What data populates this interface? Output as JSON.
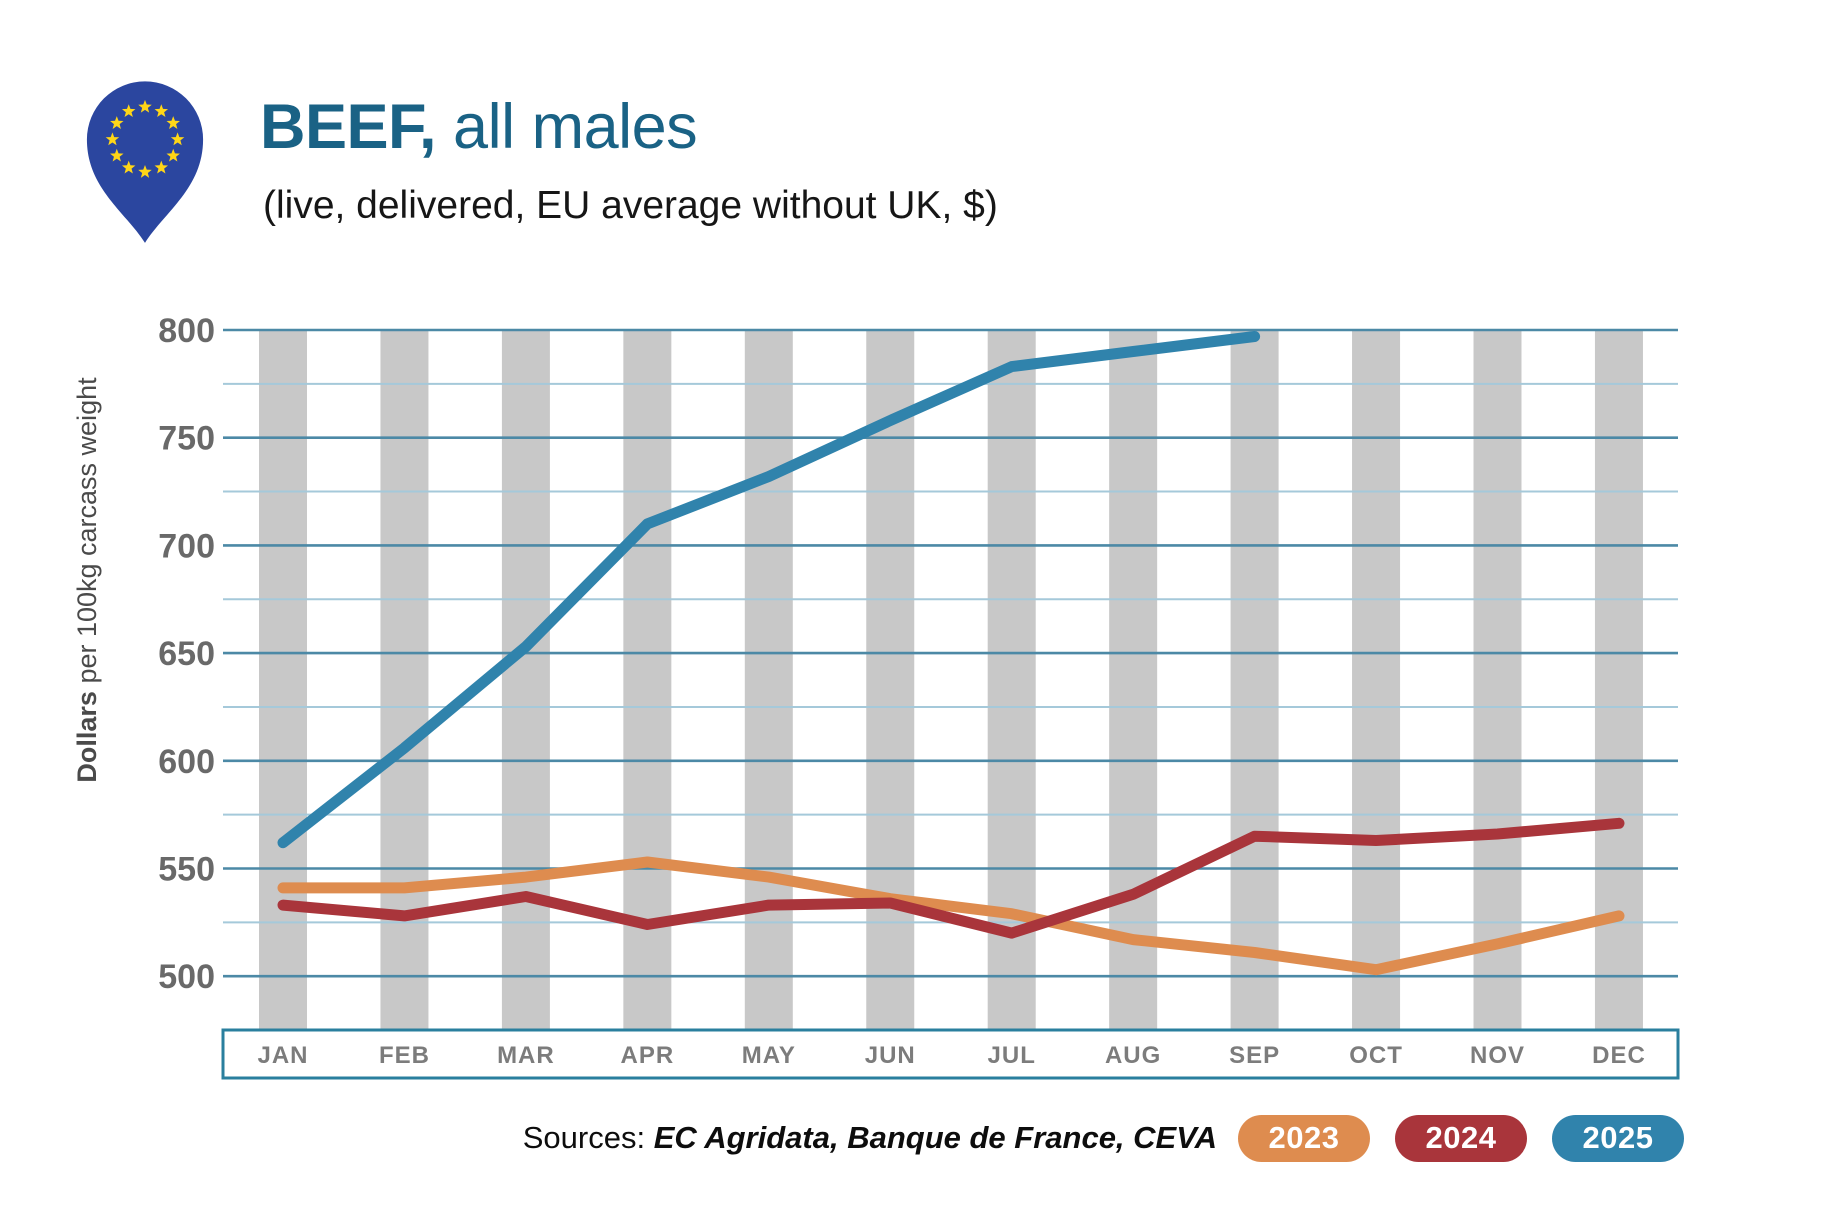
{
  "header": {
    "logo": "eu-location-pin",
    "title_bold": "BEEF,",
    "title_regular": " all males",
    "subtitle": "(live, delivered, EU average without UK, $)"
  },
  "footer": {
    "sources_label": "Sources:",
    "sources_value": "EC Agridata, Banque de France, CEVA"
  },
  "legend": {
    "position": "bottom-right",
    "items": [
      {
        "label": "2023",
        "color": "#DE8C4F"
      },
      {
        "label": "2024",
        "color": "#A9353B"
      },
      {
        "label": "2025",
        "color": "#3083AC"
      }
    ]
  },
  "colors": {
    "title": "#1A6285",
    "major_gridline": "#4C89A6",
    "minor_gridline": "#A5C9DA",
    "column_band": "#C8C8C8",
    "axis_box_border": "#2A7F9E",
    "month_label": "#7C7C7C",
    "y_tick_label": "#696969",
    "y_axis_title": "#4A4A4A",
    "pin_blue": "#2B469F",
    "star_yellow": "#FFD617"
  },
  "chart_data": {
    "type": "line",
    "title": "BEEF, all males",
    "subtitle": "(live, delivered, EU average without UK, $)",
    "xlabel": "",
    "ylabel_bold": "Dollars",
    "ylabel_rest": " per 100kg carcass weight",
    "ylim": [
      500,
      800
    ],
    "y_major_ticks": [
      500,
      550,
      600,
      650,
      700,
      750,
      800
    ],
    "y_minor_ticks": [
      525,
      575,
      625,
      675,
      725,
      775
    ],
    "grid": true,
    "legend_position": "bottom-right",
    "categories": [
      "JAN",
      "FEB",
      "MAR",
      "APR",
      "MAY",
      "JUN",
      "JUL",
      "AUG",
      "SEP",
      "OCT",
      "NOV",
      "DEC"
    ],
    "series": [
      {
        "name": "2023",
        "color": "#DE8C4F",
        "values": [
          541,
          541,
          546,
          553,
          546,
          536,
          529,
          517,
          511,
          503,
          515,
          528
        ]
      },
      {
        "name": "2024",
        "color": "#A9353B",
        "values": [
          533,
          528,
          537,
          524,
          533,
          534,
          520,
          538,
          565,
          563,
          566,
          571
        ]
      },
      {
        "name": "2025",
        "color": "#3083AC",
        "values": [
          562,
          606,
          653,
          710,
          732,
          758,
          783,
          790,
          797,
          null,
          null,
          null
        ]
      }
    ]
  }
}
